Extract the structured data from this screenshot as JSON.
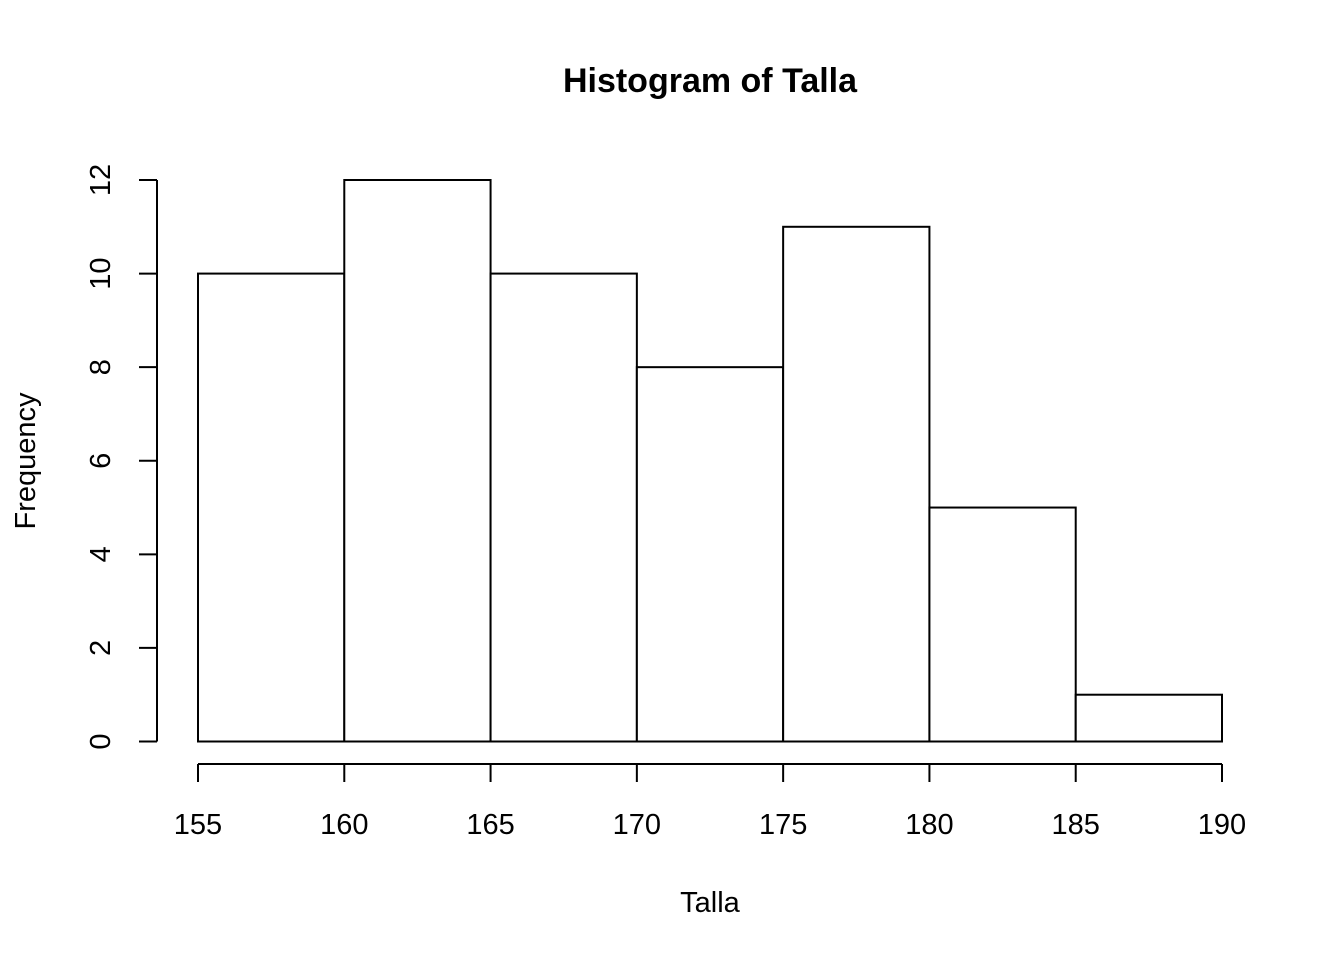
{
  "chart_data": {
    "type": "bar",
    "title": "Histogram of Talla",
    "xlabel": "Talla",
    "ylabel": "Frequency",
    "bin_edges": [
      155,
      160,
      165,
      170,
      175,
      180,
      185,
      190
    ],
    "values": [
      10,
      12,
      10,
      8,
      11,
      5,
      1
    ],
    "xlim": [
      155,
      190
    ],
    "ylim": [
      0,
      12
    ],
    "x_ticks": [
      "155",
      "160",
      "165",
      "170",
      "175",
      "180",
      "185",
      "190"
    ],
    "y_ticks": [
      "0",
      "2",
      "4",
      "6",
      "8",
      "10",
      "12"
    ],
    "grid": false,
    "legend": "none",
    "bar_fill": "#ffffff",
    "bar_stroke": "#000000"
  }
}
